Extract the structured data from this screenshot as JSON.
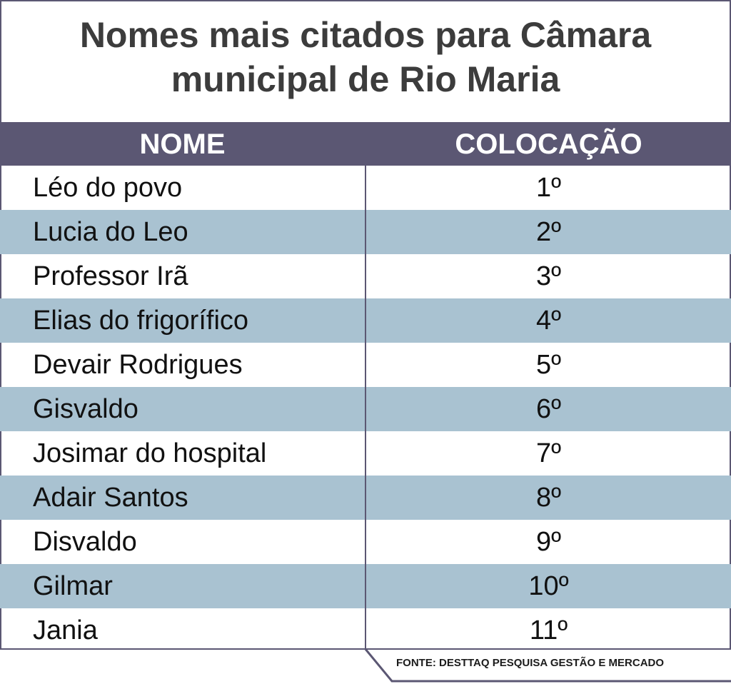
{
  "title": {
    "line1": "Nomes mais citados para Câmara",
    "line2": "municipal de Rio Maria"
  },
  "chart_data": {
    "type": "table",
    "title": "Nomes mais citados para Câmara municipal de Rio Maria",
    "columns": [
      "NOME",
      "COLOCAÇÃO"
    ],
    "rows": [
      {
        "name": "Léo do povo",
        "position": "1º"
      },
      {
        "name": "Lucia do Leo",
        "position": "2º"
      },
      {
        "name": "Professor Irã",
        "position": "3º"
      },
      {
        "name": "Elias do frigorífico",
        "position": "4º"
      },
      {
        "name": "Devair Rodrigues",
        "position": "5º"
      },
      {
        "name": "Gisvaldo",
        "position": "6º"
      },
      {
        "name": "Josimar do hospital",
        "position": "7º"
      },
      {
        "name": "Adair Santos",
        "position": "8º"
      },
      {
        "name": "Disvaldo",
        "position": "9º"
      },
      {
        "name": "Gilmar",
        "position": "10º"
      },
      {
        "name": "Jania",
        "position": "11º"
      }
    ],
    "source": "FONTE: DESTTAQ PESQUISA GESTÃO E MERCADO"
  },
  "colors": {
    "header_bg": "#5b5773",
    "alt_row_bg": "#a9c2d1",
    "title_text": "#3c3c3c"
  }
}
